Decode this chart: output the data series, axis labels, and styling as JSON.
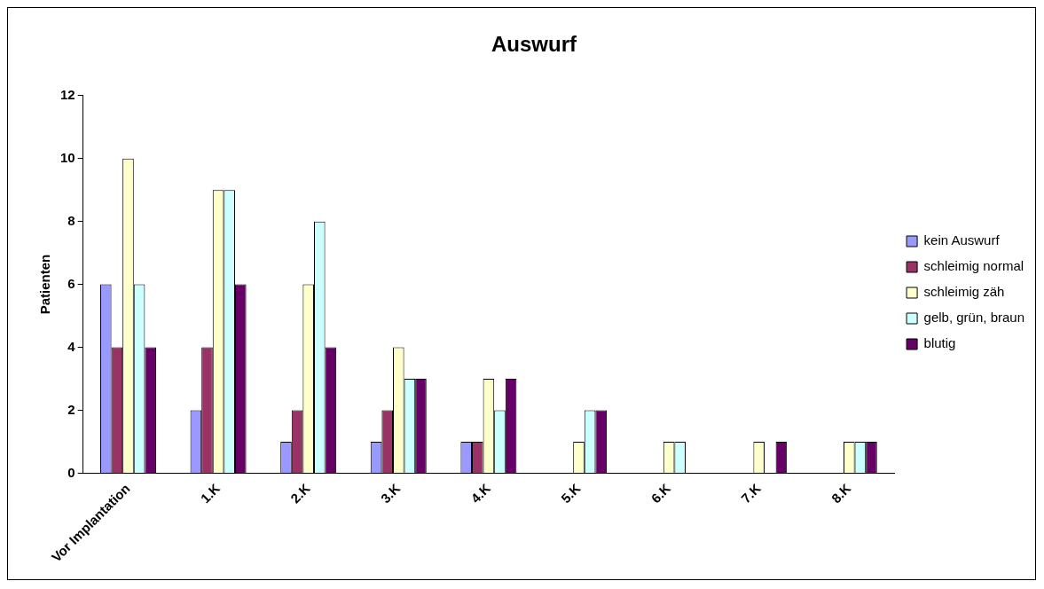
{
  "chart_data": {
    "type": "bar",
    "title": "Auswurf",
    "ylabel": "Patienten",
    "categories": [
      "Vor Implantation",
      "1.K",
      "2.K",
      "3.K",
      "4.K",
      "5.K",
      "6.K",
      "7.K",
      "8.K"
    ],
    "series": [
      {
        "name": "kein Auswurf",
        "color": "#9999ff",
        "values": [
          6,
          2,
          1,
          1,
          1,
          0,
          0,
          0,
          0
        ]
      },
      {
        "name": "schleimig normal",
        "color": "#993366",
        "values": [
          4,
          4,
          2,
          2,
          1,
          0,
          0,
          0,
          0
        ]
      },
      {
        "name": "schleimig zäh",
        "color": "#ffffcc",
        "values": [
          10,
          9,
          6,
          4,
          3,
          1,
          1,
          1,
          1
        ]
      },
      {
        "name": "gelb, grün, braun",
        "color": "#ccffff",
        "values": [
          6,
          9,
          8,
          3,
          2,
          2,
          1,
          0,
          1
        ]
      },
      {
        "name": "blutig",
        "color": "#660066",
        "values": [
          4,
          6,
          4,
          3,
          3,
          2,
          0,
          1,
          1
        ]
      }
    ],
    "ylim": [
      0,
      12
    ],
    "yticks": [
      0,
      2,
      4,
      6,
      8,
      10,
      12
    ],
    "grid": false,
    "legend": "right"
  }
}
